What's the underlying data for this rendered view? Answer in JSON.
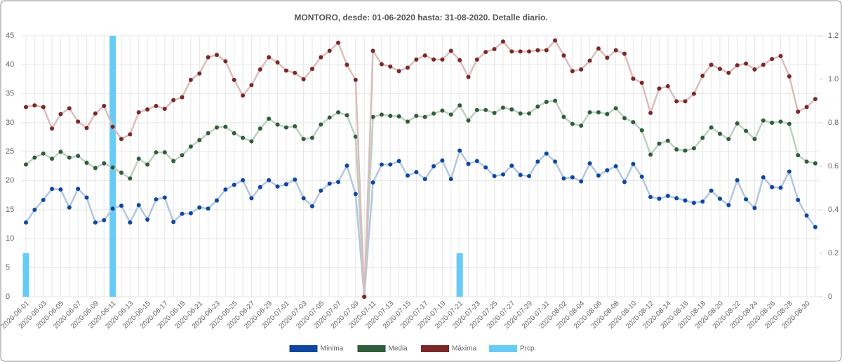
{
  "chart_data": {
    "type": "line",
    "title": "MONTORO, desde: 01-06-2020 hasta: 31-08-2020. Detalle diario.",
    "categories": [
      "2020-06-01",
      null,
      "2020-06-03",
      null,
      "2020-06-05",
      null,
      "2020-06-07",
      null,
      "2020-06-09",
      null,
      "2020-06-11",
      null,
      "2020-06-13",
      null,
      "2020-06-15",
      null,
      "2020-06-17",
      null,
      "2020-06-19",
      null,
      "2020-06-21",
      null,
      "2020-06-23",
      null,
      "2020-06-25",
      null,
      "2020-06-27",
      null,
      "2020-06-29",
      null,
      "2020-07-01",
      null,
      "2020-07-03",
      null,
      "2020-07-05",
      null,
      "2020-07-07",
      null,
      "2020-07-09",
      null,
      "2020-07-11",
      null,
      "2020-07-13",
      null,
      "2020-07-15",
      null,
      "2020-07-17",
      null,
      "2020-07-19",
      null,
      "2020-07-21",
      null,
      "2020-07-23",
      null,
      "2020-07-25",
      null,
      "2020-07-27",
      null,
      "2020-07-29",
      null,
      "2020-07-31",
      null,
      "2020-08-02",
      null,
      "2020-08-04",
      null,
      "2020-08-06",
      null,
      "2020-08-08",
      null,
      "2020-08-10",
      null,
      "2020-08-12",
      null,
      "2020-08-14",
      null,
      "2020-08-16",
      null,
      "2020-08-18",
      null,
      "2020-08-20",
      null,
      "2020-08-22",
      null,
      "2020-08-24",
      null,
      "2020-08-26",
      null,
      "2020-08-28",
      null,
      "2020-08-30",
      null
    ],
    "series": [
      {
        "name": "Mínima",
        "color": "#0d47a1",
        "line_color": "#b3c6e0",
        "values": [
          12.8,
          15.0,
          16.7,
          18.6,
          18.5,
          15.4,
          18.6,
          17.1,
          12.8,
          13.2,
          15.2,
          15.7,
          12.8,
          15.8,
          13.3,
          16.8,
          17.1,
          12.9,
          14.3,
          14.4,
          15.4,
          15.2,
          16.6,
          18.5,
          19.3,
          20.1,
          17.0,
          18.9,
          20.1,
          19.0,
          19.4,
          20.2,
          17.0,
          15.6,
          18.3,
          19.5,
          19.8,
          22.6,
          17.7,
          0,
          19.7,
          22.8,
          22.8,
          23.4,
          20.9,
          21.5,
          20.3,
          22.5,
          23.5,
          20.3,
          25.2,
          22.9,
          23.4,
          22.3,
          20.8,
          21.1,
          22.6,
          21.0,
          20.8,
          23.3,
          24.7,
          23.3,
          20.4,
          20.6,
          19.9,
          23.0,
          20.9,
          21.8,
          22.5,
          19.8,
          22.9,
          20.7,
          17.2,
          16.9,
          17.4,
          17.0,
          16.6,
          16.2,
          16.4,
          18.3,
          16.9,
          15.8,
          20.1,
          16.8,
          15.3,
          20.6,
          18.9,
          18.8,
          21.6,
          16.7,
          14.0,
          12.0
        ]
      },
      {
        "name": "Media",
        "color": "#2e5e3a",
        "line_color": "#bdd0c0",
        "values": [
          22.8,
          24.0,
          24.7,
          23.8,
          25.0,
          24.0,
          24.3,
          23.1,
          22.2,
          23.0,
          22.3,
          21.4,
          20.4,
          23.8,
          22.8,
          24.9,
          24.9,
          23.4,
          24.4,
          25.9,
          27.0,
          28.2,
          29.2,
          29.3,
          28.2,
          27.4,
          26.8,
          29.0,
          30.7,
          29.7,
          29.2,
          29.4,
          27.2,
          27.4,
          29.7,
          30.9,
          31.8,
          31.3,
          27.6,
          0,
          31.0,
          31.4,
          31.2,
          31.1,
          30.2,
          31.2,
          31.0,
          31.6,
          32.1,
          31.4,
          33.0,
          30.4,
          32.2,
          32.2,
          31.7,
          32.6,
          32.3,
          31.6,
          31.6,
          32.8,
          33.6,
          33.8,
          31.0,
          29.8,
          29.5,
          31.8,
          31.8,
          31.5,
          32.5,
          30.8,
          30.1,
          28.7,
          24.5,
          26.4,
          26.9,
          25.4,
          25.2,
          25.6,
          27.4,
          29.2,
          28.1,
          27.2,
          29.9,
          28.6,
          27.2,
          30.4,
          30.0,
          30.2,
          29.8,
          24.4,
          23.3,
          23.0
        ]
      },
      {
        "name": "Máxima",
        "color": "#7b2727",
        "line_color": "#dcbcbc",
        "values": [
          32.7,
          33.0,
          32.7,
          29.0,
          31.5,
          32.5,
          30.2,
          29.1,
          31.6,
          32.9,
          29.3,
          27.2,
          28.0,
          31.8,
          32.3,
          32.9,
          32.4,
          33.9,
          34.4,
          37.4,
          38.5,
          41.3,
          41.7,
          40.6,
          37.4,
          34.7,
          36.5,
          39.2,
          41.3,
          40.4,
          39.0,
          38.6,
          37.5,
          39.3,
          41.3,
          42.4,
          43.8,
          40.0,
          37.4,
          0,
          42.4,
          40.1,
          39.7,
          38.9,
          39.5,
          40.9,
          41.6,
          40.9,
          40.9,
          42.4,
          40.8,
          37.9,
          40.9,
          42.2,
          42.7,
          44.0,
          42.3,
          42.3,
          42.3,
          42.5,
          42.5,
          44.2,
          41.6,
          38.9,
          39.2,
          40.7,
          42.8,
          41.2,
          42.5,
          41.9,
          37.6,
          36.9,
          31.7,
          35.9,
          36.3,
          33.7,
          33.7,
          35.0,
          38.1,
          40.0,
          39.3,
          38.6,
          39.9,
          40.2,
          39.2,
          40.0,
          41.0,
          41.5,
          38.0,
          31.9,
          32.7,
          34.1
        ]
      },
      {
        "name": "Prcp.",
        "type": "bar",
        "axis": "y2",
        "color": "#66ccf5",
        "values": [
          0.2,
          0,
          0,
          0,
          0,
          0,
          0,
          0,
          0,
          0,
          1.2,
          0,
          0,
          0,
          0,
          0,
          0,
          0,
          0,
          0,
          0,
          0,
          0,
          0,
          0,
          0,
          0,
          0,
          0,
          0,
          0,
          0,
          0,
          0,
          0,
          0,
          0,
          0,
          0,
          0,
          0,
          0,
          0,
          0,
          0,
          0,
          0,
          0,
          0,
          0,
          0.2,
          0,
          0,
          0,
          0,
          0,
          0,
          0,
          0,
          0,
          0,
          0,
          0,
          0,
          0,
          0,
          0,
          0,
          0,
          0,
          0,
          0,
          0,
          0,
          0,
          0,
          0,
          0,
          0,
          0,
          0,
          0,
          0,
          0,
          0,
          0,
          0,
          0,
          0,
          0,
          0,
          0
        ]
      }
    ],
    "ylim": [
      0,
      45
    ],
    "yticks": [
      0,
      5,
      10,
      15,
      20,
      25,
      30,
      35,
      40,
      45
    ],
    "y2lim": [
      0,
      1.2
    ],
    "y2ticks": [
      0,
      0.2,
      0.4,
      0.6,
      0.8,
      {
        "value": 1,
        "label": "1.0"
      },
      1.2
    ],
    "grid": true,
    "legend": "bottom"
  }
}
